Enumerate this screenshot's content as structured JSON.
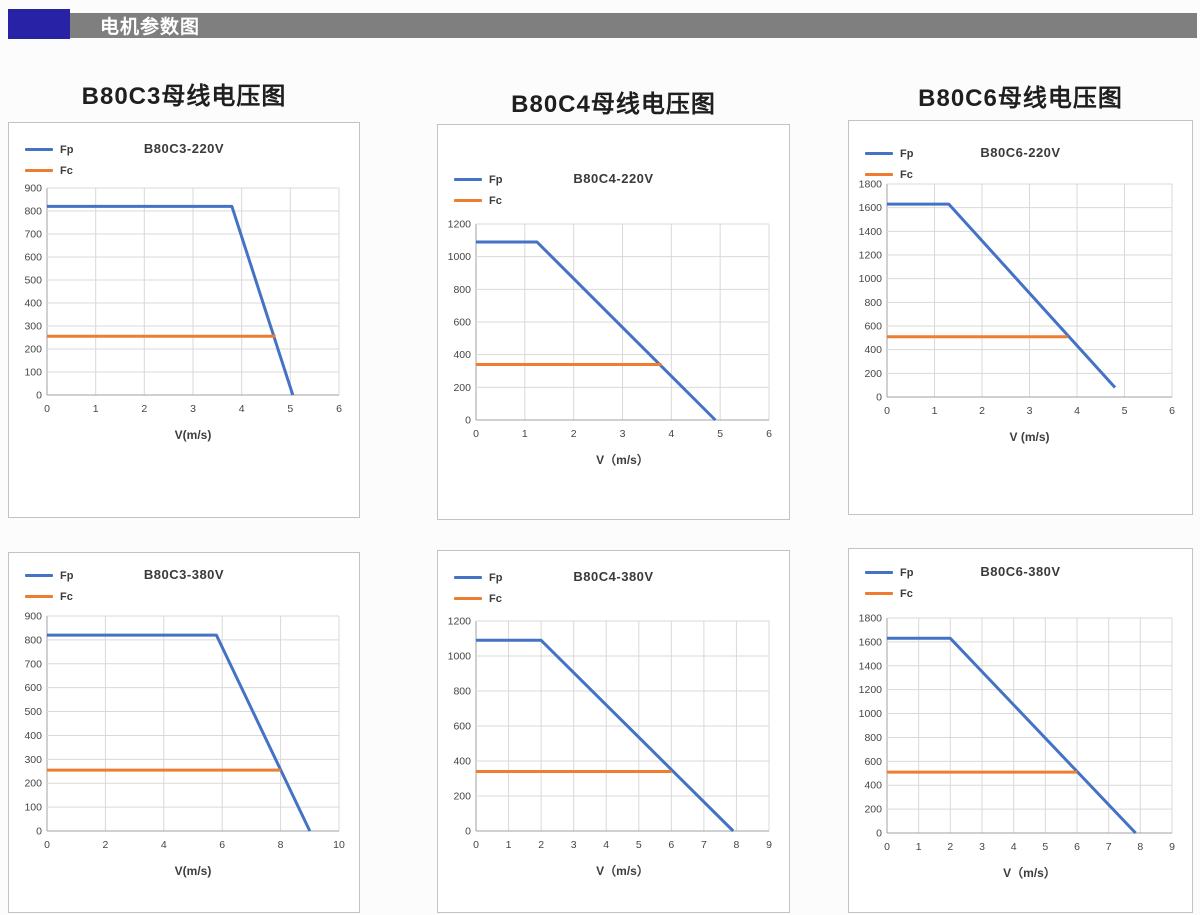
{
  "header": {
    "title": "电机参数图"
  },
  "colors": {
    "fp": "#4472C4",
    "fc": "#ED7D31",
    "grid": "#d9d9d9",
    "axis": "#a0a0a0",
    "header_bar": "#7f7f7f",
    "header_accent": "#2823a6"
  },
  "column_headings": [
    "B80C3母线电压图",
    "B80C4母线电压图",
    "B80C6母线电压图"
  ],
  "chart_data": [
    {
      "type": "line",
      "title": "B80C3-220V",
      "xlabel": "V(m/s)",
      "xlim": [
        0,
        6
      ],
      "xstep": 1,
      "ylim": [
        0,
        900
      ],
      "ystep": 100,
      "grid": "on",
      "legend_position": "top-left",
      "series": [
        {
          "name": "Fp",
          "color": "#4472C4",
          "points": [
            [
              0,
              820
            ],
            [
              3.8,
              820
            ],
            [
              5.05,
              0
            ]
          ]
        },
        {
          "name": "Fc",
          "color": "#ED7D31",
          "points": [
            [
              0,
              255
            ],
            [
              4.7,
              255
            ]
          ]
        }
      ]
    },
    {
      "type": "line",
      "title": "B80C4-220V",
      "xlabel": "V（m/s）",
      "xlim": [
        0,
        6
      ],
      "xstep": 1,
      "ylim": [
        0,
        1200
      ],
      "ystep": 200,
      "grid": "on",
      "legend_position": "top-left",
      "series": [
        {
          "name": "Fp",
          "color": "#4472C4",
          "points": [
            [
              0,
              1090
            ],
            [
              1.25,
              1090
            ],
            [
              4.9,
              0
            ]
          ]
        },
        {
          "name": "Fc",
          "color": "#ED7D31",
          "points": [
            [
              0,
              340
            ],
            [
              3.8,
              340
            ]
          ]
        }
      ]
    },
    {
      "type": "line",
      "title": "B80C6-220V",
      "xlabel": "V (m/s)",
      "xlim": [
        0,
        6
      ],
      "xstep": 1,
      "ylim": [
        0,
        1800
      ],
      "ystep": 200,
      "grid": "on",
      "legend_position": "top-left",
      "series": [
        {
          "name": "Fp",
          "color": "#4472C4",
          "points": [
            [
              0,
              1630
            ],
            [
              1.3,
              1630
            ],
            [
              4.8,
              80
            ]
          ]
        },
        {
          "name": "Fc",
          "color": "#ED7D31",
          "points": [
            [
              0,
              510
            ],
            [
              3.8,
              510
            ]
          ]
        }
      ]
    },
    {
      "type": "line",
      "title": "B80C3-380V",
      "xlabel": "V(m/s)",
      "xlim": [
        0,
        10
      ],
      "xstep": 2,
      "ylim": [
        0,
        900
      ],
      "ystep": 100,
      "grid": "on",
      "legend_position": "top-left",
      "series": [
        {
          "name": "Fp",
          "color": "#4472C4",
          "points": [
            [
              0,
              820
            ],
            [
              5.8,
              820
            ],
            [
              9,
              0
            ]
          ]
        },
        {
          "name": "Fc",
          "color": "#ED7D31",
          "points": [
            [
              0,
              255
            ],
            [
              8,
              255
            ]
          ]
        }
      ]
    },
    {
      "type": "line",
      "title": "B80C4-380V",
      "xlabel": "V（m/s）",
      "xlim": [
        0,
        9
      ],
      "xstep": 1,
      "ylim": [
        0,
        1200
      ],
      "ystep": 200,
      "grid": "on",
      "legend_position": "top-left",
      "series": [
        {
          "name": "Fp",
          "color": "#4472C4",
          "points": [
            [
              0,
              1090
            ],
            [
              2,
              1090
            ],
            [
              7.9,
              0
            ]
          ]
        },
        {
          "name": "Fc",
          "color": "#ED7D31",
          "points": [
            [
              0,
              340
            ],
            [
              6,
              340
            ]
          ]
        }
      ]
    },
    {
      "type": "line",
      "title": "B80C6-380V",
      "xlabel": "V（m/s）",
      "xlim": [
        0,
        9
      ],
      "xstep": 1,
      "ylim": [
        0,
        1800
      ],
      "ystep": 200,
      "grid": "on",
      "legend_position": "top-left",
      "series": [
        {
          "name": "Fp",
          "color": "#4472C4",
          "points": [
            [
              0,
              1630
            ],
            [
              2,
              1630
            ],
            [
              7.85,
              0
            ]
          ]
        },
        {
          "name": "Fc",
          "color": "#ED7D31",
          "points": [
            [
              0,
              510
            ],
            [
              6,
              510
            ]
          ]
        }
      ]
    }
  ]
}
